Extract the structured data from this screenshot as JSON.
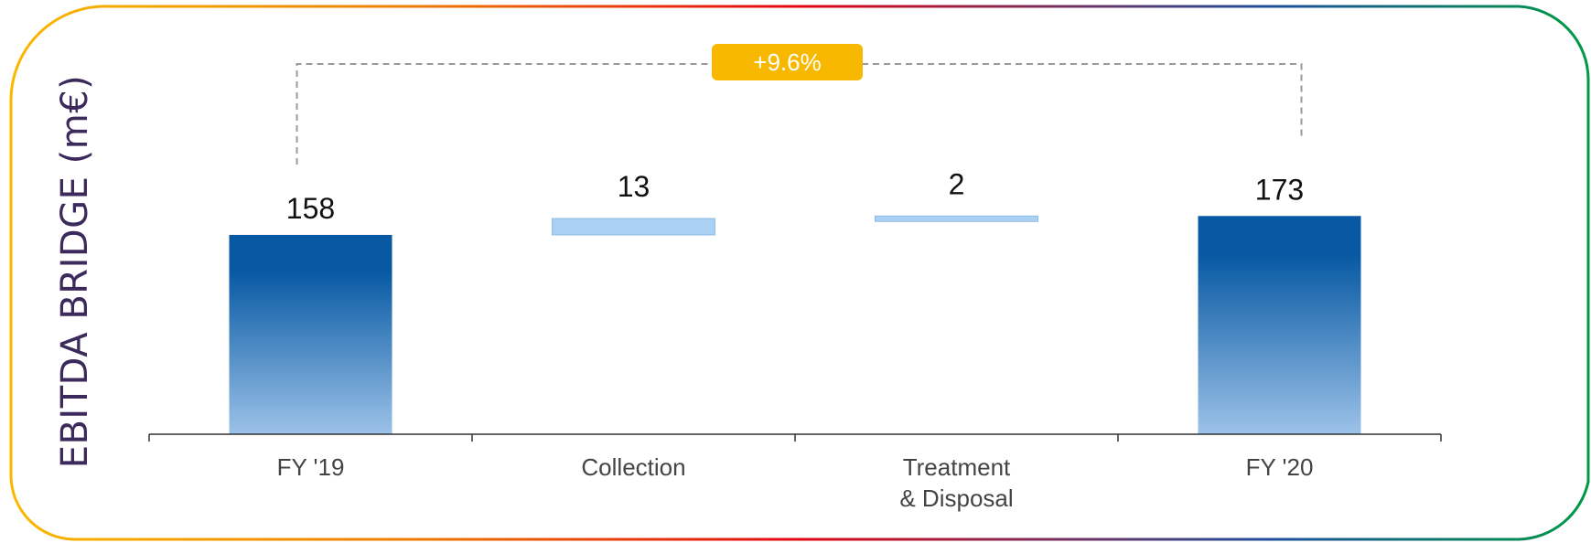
{
  "side_title": "EBITDA BRIDGE (m€)",
  "badge": "+9.6%",
  "colors": {
    "total_top": "#0759a3",
    "total_bottom": "#9cc2e8",
    "delta_fill": "#aad0f4",
    "delta_stroke": "#8fbde6",
    "badge": "#f9b800",
    "bracket": "#9a9a9a",
    "frame_gradient": [
      "#f9b800",
      "#ef7d00",
      "#e30613",
      "#1d4f9c",
      "#009a44"
    ]
  },
  "chart_data": {
    "type": "waterfall",
    "categories": [
      "FY '19",
      "Collection",
      "Treatment\n& Disposal",
      "FY '20"
    ],
    "bars": [
      {
        "label": "158",
        "start": 0,
        "end": 158,
        "kind": "total"
      },
      {
        "label": "13",
        "start": 158,
        "end": 171,
        "kind": "delta"
      },
      {
        "label": "2",
        "start": 171,
        "end": 173,
        "kind": "delta"
      },
      {
        "label": "173",
        "start": 0,
        "end": 173,
        "kind": "total"
      }
    ],
    "ylim": [
      0,
      230
    ],
    "grid": false,
    "annotation": "+9.6%"
  }
}
